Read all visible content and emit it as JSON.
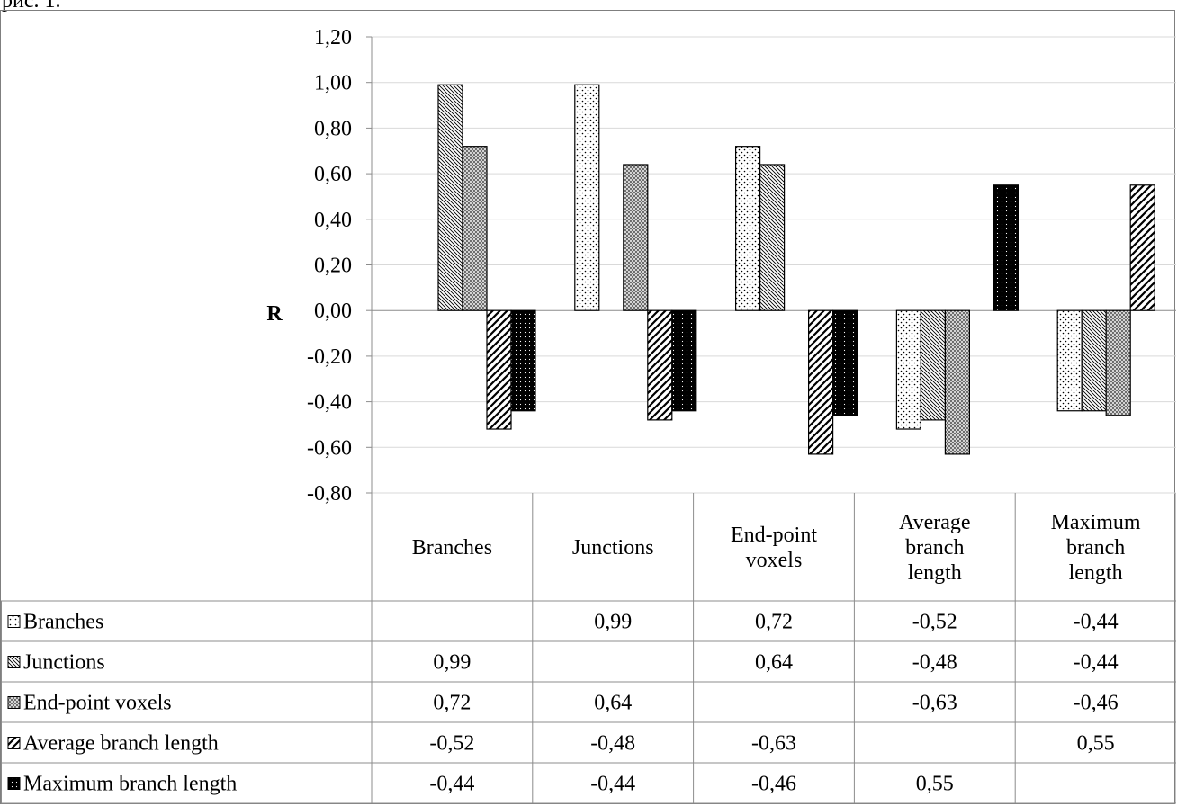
{
  "caption": "рис. 1.",
  "chart_data": {
    "type": "bar",
    "ylabel": "R",
    "ylim": [
      -0.8,
      1.2
    ],
    "y_ticks": [
      "1,20",
      "1,00",
      "0,80",
      "0,60",
      "0,40",
      "0,20",
      "0,00",
      "-0,20",
      "-0,40",
      "-0,60",
      "-0,80"
    ],
    "y_tick_values": [
      1.2,
      1.0,
      0.8,
      0.6,
      0.4,
      0.2,
      0.0,
      -0.2,
      -0.4,
      -0.6,
      -0.8
    ],
    "gridlines": true,
    "categories": [
      [
        "Branches"
      ],
      [
        "Junctions"
      ],
      [
        "End-point",
        "voxels"
      ],
      [
        "Average",
        "branch",
        "length"
      ],
      [
        "Maximum",
        "branch",
        "length"
      ]
    ],
    "legend_placement": "data-table-left",
    "series": [
      {
        "name": "Branches",
        "pattern": "dots",
        "values": [
          null,
          0.99,
          0.72,
          -0.52,
          -0.44
        ],
        "labels": [
          "",
          "0,99",
          "0,72",
          "-0,52",
          "-0,44"
        ]
      },
      {
        "name": "Junctions",
        "pattern": "backdiag-thin",
        "values": [
          0.99,
          null,
          0.64,
          -0.48,
          -0.44
        ],
        "labels": [
          "0,99",
          "",
          "0,64",
          "-0,48",
          "-0,44"
        ]
      },
      {
        "name": "End-point voxels",
        "pattern": "crosshatch",
        "values": [
          0.72,
          0.64,
          null,
          -0.63,
          -0.46
        ],
        "labels": [
          "0,72",
          "0,64",
          "",
          "-0,63",
          "-0,46"
        ]
      },
      {
        "name": "Average branch length",
        "pattern": "wide-diag",
        "values": [
          -0.52,
          -0.48,
          -0.63,
          null,
          0.55
        ],
        "labels": [
          "-0,52",
          "-0,48",
          "-0,63",
          "",
          "0,55"
        ]
      },
      {
        "name": "Maximum branch length",
        "pattern": "dense-dark",
        "values": [
          -0.44,
          -0.44,
          -0.46,
          0.55,
          null
        ],
        "labels": [
          "-0,44",
          "-0,44",
          "-0,46",
          "0,55",
          ""
        ]
      }
    ]
  }
}
